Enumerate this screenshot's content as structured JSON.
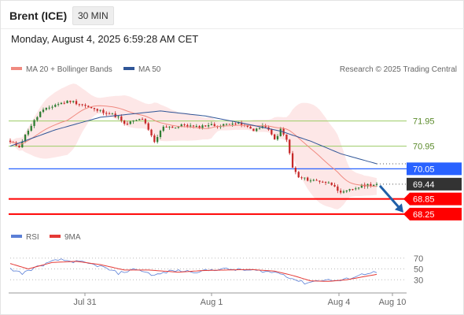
{
  "header": {
    "symbol": "Brent (ICE)",
    "timeframe": "30 MIN",
    "datetime": "Monday, August 4, 2025 6:59:28 AM CET"
  },
  "legend": {
    "ma20_label": "MA 20 + Bollinger Bands",
    "ma50_label": "MA 50",
    "research_credit": "Research © 2025 Trading Central",
    "rsi_label": "RSI",
    "rsi_ma_label": "9MA"
  },
  "colors": {
    "ma20": "#f08a80",
    "ma50": "#2f5597",
    "bollinger_fill": "#fde3e3",
    "candle_up": "#2e7d32",
    "candle_down": "#c62828",
    "resistance": "#9ccc65",
    "resistance_text": "#5a8a2a",
    "pivot": "#2962ff",
    "support": "#ff0000",
    "last_price_box": "#333333",
    "forecast_arrow": "#1f5fa8",
    "rsi": "#5b7fd6",
    "rsi_ma": "#e53935"
  },
  "chart_data": [
    {
      "type": "candlestick",
      "title": "Brent (ICE)",
      "timeframe": "30 MIN",
      "x_ticks": [
        "Jul 31",
        "Aug 1",
        "Aug 4",
        "Aug 10"
      ],
      "last_price": 69.44,
      "ylim": [
        67.9,
        73.6
      ],
      "levels": [
        {
          "label": "71.95",
          "value": 71.95,
          "kind": "resistance"
        },
        {
          "label": "70.95",
          "value": 70.95,
          "kind": "resistance"
        },
        {
          "label": "70.05",
          "value": 70.05,
          "kind": "pivot"
        },
        {
          "label": "69.44",
          "value": 69.44,
          "kind": "last"
        },
        {
          "label": "68.85",
          "value": 68.85,
          "kind": "support"
        },
        {
          "label": "68.25",
          "value": 68.25,
          "kind": "support"
        }
      ],
      "close_path": [
        {
          "i": 0,
          "c": 71.1
        },
        {
          "i": 3,
          "c": 70.95
        },
        {
          "i": 6,
          "c": 71.6
        },
        {
          "i": 10,
          "c": 72.3
        },
        {
          "i": 15,
          "c": 72.6
        },
        {
          "i": 20,
          "c": 72.75
        },
        {
          "i": 24,
          "c": 72.6
        },
        {
          "i": 28,
          "c": 72.4
        },
        {
          "i": 32,
          "c": 72.3
        },
        {
          "i": 36,
          "c": 72.1
        },
        {
          "i": 38,
          "c": 71.8
        },
        {
          "i": 40,
          "c": 71.9
        },
        {
          "i": 44,
          "c": 72.05
        },
        {
          "i": 48,
          "c": 71.1
        },
        {
          "i": 51,
          "c": 71.75
        },
        {
          "i": 55,
          "c": 71.7
        },
        {
          "i": 58,
          "c": 71.8
        },
        {
          "i": 62,
          "c": 71.7
        },
        {
          "i": 66,
          "c": 71.8
        },
        {
          "i": 70,
          "c": 71.75
        },
        {
          "i": 74,
          "c": 71.9
        },
        {
          "i": 77,
          "c": 71.8
        },
        {
          "i": 81,
          "c": 71.6
        },
        {
          "i": 85,
          "c": 71.75
        },
        {
          "i": 88,
          "c": 71.2
        },
        {
          "i": 90,
          "c": 71.6
        },
        {
          "i": 92,
          "c": 71.2
        },
        {
          "i": 94,
          "c": 70.1
        },
        {
          "i": 96,
          "c": 69.7
        },
        {
          "i": 100,
          "c": 69.6
        },
        {
          "i": 104,
          "c": 69.55
        },
        {
          "i": 108,
          "c": 69.4
        },
        {
          "i": 110,
          "c": 69.05
        },
        {
          "i": 114,
          "c": 69.25
        },
        {
          "i": 118,
          "c": 69.4
        },
        {
          "i": 122,
          "c": 69.44
        }
      ],
      "ma50_path": [
        {
          "i": 0,
          "v": 70.95
        },
        {
          "i": 15,
          "v": 71.6
        },
        {
          "i": 30,
          "v": 72.1
        },
        {
          "i": 50,
          "v": 72.35
        },
        {
          "i": 65,
          "v": 72.15
        },
        {
          "i": 78,
          "v": 71.85
        },
        {
          "i": 90,
          "v": 71.55
        },
        {
          "i": 100,
          "v": 71.15
        },
        {
          "i": 110,
          "v": 70.65
        },
        {
          "i": 122,
          "v": 70.25
        }
      ],
      "forecast": {
        "from": 69.44,
        "to": 68.25
      }
    },
    {
      "type": "line",
      "title": "RSI",
      "yticks": [
        70,
        50,
        30
      ],
      "ylim": [
        10,
        90
      ],
      "rsi_path": [
        {
          "i": 0,
          "v": 50
        },
        {
          "i": 4,
          "v": 42
        },
        {
          "i": 10,
          "v": 56
        },
        {
          "i": 16,
          "v": 67
        },
        {
          "i": 24,
          "v": 62
        },
        {
          "i": 30,
          "v": 55
        },
        {
          "i": 36,
          "v": 42
        },
        {
          "i": 42,
          "v": 50
        },
        {
          "i": 48,
          "v": 38
        },
        {
          "i": 54,
          "v": 47
        },
        {
          "i": 62,
          "v": 45
        },
        {
          "i": 70,
          "v": 50
        },
        {
          "i": 78,
          "v": 48
        },
        {
          "i": 84,
          "v": 46
        },
        {
          "i": 90,
          "v": 42
        },
        {
          "i": 94,
          "v": 32
        },
        {
          "i": 98,
          "v": 24
        },
        {
          "i": 104,
          "v": 30
        },
        {
          "i": 110,
          "v": 28
        },
        {
          "i": 116,
          "v": 38
        },
        {
          "i": 120,
          "v": 44
        },
        {
          "i": 122,
          "v": 43
        }
      ],
      "rsi_ma_path": [
        {
          "i": 0,
          "v": 60
        },
        {
          "i": 6,
          "v": 50
        },
        {
          "i": 14,
          "v": 62
        },
        {
          "i": 22,
          "v": 64
        },
        {
          "i": 30,
          "v": 58
        },
        {
          "i": 38,
          "v": 48
        },
        {
          "i": 46,
          "v": 48
        },
        {
          "i": 56,
          "v": 44
        },
        {
          "i": 64,
          "v": 47
        },
        {
          "i": 72,
          "v": 48
        },
        {
          "i": 80,
          "v": 49
        },
        {
          "i": 88,
          "v": 46
        },
        {
          "i": 94,
          "v": 38
        },
        {
          "i": 100,
          "v": 28
        },
        {
          "i": 106,
          "v": 27
        },
        {
          "i": 112,
          "v": 30
        },
        {
          "i": 118,
          "v": 36
        },
        {
          "i": 122,
          "v": 40
        }
      ]
    }
  ]
}
